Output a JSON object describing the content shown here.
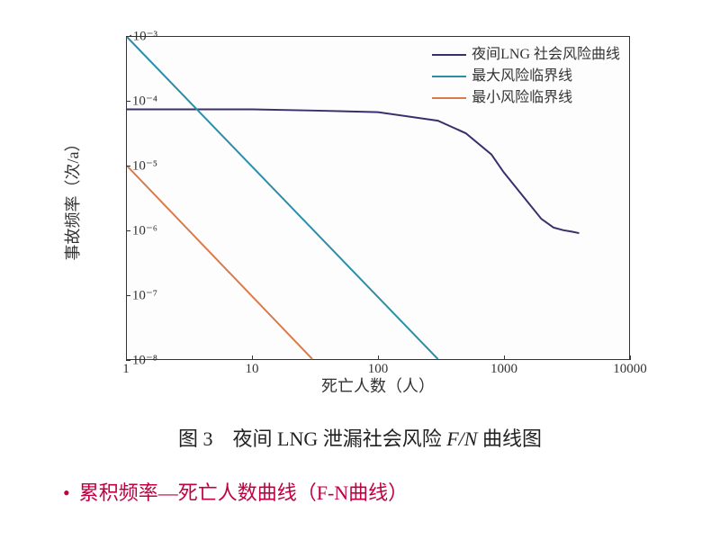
{
  "chart": {
    "type": "line",
    "background_color": "#fdfdfd",
    "border_color": "#333333",
    "x_axis": {
      "label": "死亡人数（人）",
      "scale": "log",
      "min": 1,
      "max": 10000,
      "ticks": [
        1,
        10,
        100,
        1000,
        10000
      ],
      "tick_labels": [
        "1",
        "10",
        "100",
        "1000",
        "10000"
      ],
      "label_fontsize": 18,
      "tick_fontsize": 15
    },
    "y_axis": {
      "label": "事故频率（次/a）",
      "scale": "log",
      "min": 1e-08,
      "max": 0.001,
      "ticks": [
        1e-08,
        1e-07,
        1e-06,
        1e-05,
        0.0001,
        0.001
      ],
      "tick_labels": [
        "10⁻⁸",
        "10⁻⁷",
        "10⁻⁶",
        "10⁻⁵",
        "10⁻⁴",
        "·10⁻³"
      ],
      "label_fontsize": 18,
      "tick_fontsize": 15
    },
    "series": [
      {
        "name": "夜间LNG 社会风险曲线",
        "color": "#3b2f6b",
        "line_width": 2,
        "points": [
          [
            1,
            7.5e-05
          ],
          [
            3,
            7.5e-05
          ],
          [
            10,
            7.5e-05
          ],
          [
            30,
            7.2e-05
          ],
          [
            100,
            6.8e-05
          ],
          [
            300,
            5e-05
          ],
          [
            500,
            3.2e-05
          ],
          [
            800,
            1.5e-05
          ],
          [
            1000,
            8e-06
          ],
          [
            1500,
            3e-06
          ],
          [
            2000,
            1.5e-06
          ],
          [
            2500,
            1.1e-06
          ],
          [
            3000,
            1e-06
          ],
          [
            3500,
            9.5e-07
          ],
          [
            4000,
            9e-07
          ]
        ]
      },
      {
        "name": "最大风险临界线",
        "color": "#2b8ea8",
        "line_width": 2,
        "points": [
          [
            1,
            0.001
          ],
          [
            300,
            1e-08
          ]
        ]
      },
      {
        "name": "最小风险临界线",
        "color": "#d97b4a",
        "line_width": 2,
        "points": [
          [
            1,
            1e-05
          ],
          [
            30,
            1e-08
          ]
        ]
      }
    ],
    "legend": {
      "position": "top-right",
      "fontsize": 16,
      "items": [
        {
          "label": "夜间LNG 社会风险曲线",
          "color": "#3b2f6b"
        },
        {
          "label": "最大风险临界线",
          "color": "#2b8ea8"
        },
        {
          "label": "最小风险临界线",
          "color": "#d97b4a"
        }
      ]
    }
  },
  "caption": {
    "prefix": "图 3　夜间 LNG 泄漏社会风险 ",
    "formula": "F/N",
    "suffix": " 曲线图",
    "fontsize": 22,
    "color": "#222222"
  },
  "bullet": {
    "text": "累积频率—死亡人数曲线（F-N曲线）",
    "color": "#c00040",
    "fontsize": 22
  }
}
